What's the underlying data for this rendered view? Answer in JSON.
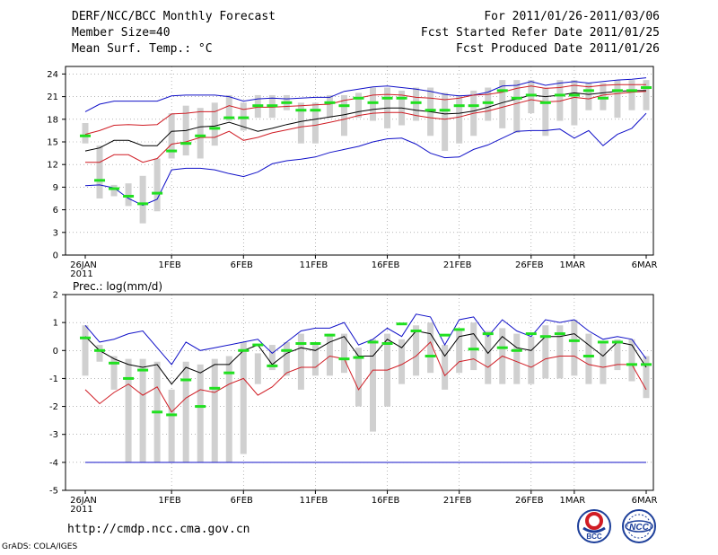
{
  "header": {
    "line1_left": "DERF/NCC/BCC Monthly Forecast",
    "line2_left": "Member Size=40",
    "line3_left": "Mean Surf. Temp.: °C",
    "line1_right": "For 2011/01/26-2011/03/06",
    "line2_right": "Fcst Started Refer Date 2011/01/25",
    "line3_right": "Fcst Produced Date 2011/01/26"
  },
  "footer": {
    "url": "http://cmdp.ncc.cma.gov.cn",
    "credit": "GrADS: COLA/IGES",
    "logo_left_text": "BCC",
    "logo_right_text": "NCC"
  },
  "colors": {
    "median": "#000000",
    "red": "#d01c24",
    "blue": "#1010c8",
    "bar": "#d0d0d0",
    "mark": "#20e020"
  },
  "chart_data": [
    {
      "type": "line",
      "title": "Mean Surf. Temp.: °C",
      "ylabel": "",
      "ylim": [
        0,
        25
      ],
      "yticks": [
        0,
        3,
        6,
        9,
        12,
        15,
        18,
        21,
        24
      ],
      "xlim": [
        0,
        39
      ],
      "xticks": [
        {
          "x": 0,
          "label": "26JAN",
          "sub": "2011"
        },
        {
          "x": 6,
          "label": "1FEB"
        },
        {
          "x": 11,
          "label": "6FEB"
        },
        {
          "x": 16,
          "label": "11FEB"
        },
        {
          "x": 21,
          "label": "16FEB"
        },
        {
          "x": 26,
          "label": "21FEB"
        },
        {
          "x": 31,
          "label": "26FEB"
        },
        {
          "x": 34,
          "label": "1MAR"
        },
        {
          "x": 39,
          "label": "6MAR"
        }
      ],
      "series": [
        {
          "name": "ensemble max",
          "color": "blue",
          "values": [
            19,
            20,
            20.4,
            20.4,
            20.4,
            20.4,
            21.1,
            21.2,
            21.2,
            21.2,
            21,
            20.4,
            20.7,
            20.8,
            20.7,
            20.8,
            20.9,
            20.9,
            21.7,
            22,
            22.3,
            22.4,
            22.2,
            22,
            21.7,
            21.3,
            21.1,
            21.2,
            21.6,
            22.4,
            22.5,
            23,
            22.5,
            22.8,
            23,
            22.8,
            23,
            23.2,
            23.3,
            23.5
          ]
        },
        {
          "name": "upper percentile",
          "color": "red",
          "values": [
            16,
            16.5,
            17.2,
            17.3,
            17.2,
            17.3,
            18.7,
            18.8,
            19,
            19,
            19.8,
            19.3,
            19.6,
            19.6,
            19.7,
            19.8,
            19.9,
            20,
            20.5,
            20.8,
            21.2,
            21.3,
            21.2,
            20.9,
            20.8,
            20.6,
            20.8,
            21.2,
            21.3,
            21.6,
            22.1,
            22.4,
            22.1,
            22.2,
            22.5,
            22.3,
            22.5,
            22.6,
            22.6,
            22.6
          ]
        },
        {
          "name": "median",
          "color": "median",
          "values": [
            13.8,
            14.2,
            15.2,
            15.2,
            14.5,
            14.5,
            16.4,
            16.5,
            17,
            17.1,
            17.6,
            17,
            16.4,
            16.8,
            17.3,
            17.7,
            18,
            18.3,
            18.6,
            19,
            19.3,
            19.5,
            19.5,
            19.2,
            19,
            18.7,
            18.8,
            19.1,
            19.6,
            20.2,
            20.7,
            21.2,
            21,
            21.2,
            21.5,
            21.3,
            21.5,
            21.7,
            21.8,
            21.8
          ]
        },
        {
          "name": "lower percentile",
          "color": "red",
          "values": [
            12.3,
            12.3,
            13.3,
            13.3,
            12.3,
            12.8,
            14.7,
            15,
            15.6,
            15.6,
            16.4,
            15.2,
            15.6,
            16.2,
            16.6,
            17,
            17.2,
            17.6,
            18,
            18.5,
            18.8,
            18.9,
            18.9,
            18.5,
            18.2,
            18,
            18.3,
            18.8,
            19.1,
            19.6,
            20.1,
            20.6,
            20.3,
            20.4,
            20.9,
            20.7,
            21.2,
            21.4,
            21.6,
            21.7
          ]
        },
        {
          "name": "ensemble min",
          "color": "blue",
          "values": [
            9.2,
            9.3,
            8.9,
            7.5,
            6.6,
            7.4,
            11.3,
            11.5,
            11.5,
            11.3,
            10.8,
            10.4,
            11,
            12.1,
            12.5,
            12.7,
            13,
            13.6,
            14,
            14.4,
            15,
            15.4,
            15.5,
            14.7,
            13.5,
            12.9,
            13,
            14,
            14.6,
            15.5,
            16.4,
            16.5,
            16.5,
            16.7,
            15.5,
            16.5,
            14.5,
            16,
            16.8,
            18.8
          ]
        }
      ],
      "bars": [
        [
          14.8,
          17.5
        ],
        [
          7.5,
          14.5
        ],
        [
          7.8,
          9.3
        ],
        [
          6.5,
          9.5
        ],
        [
          4.2,
          10.5
        ],
        [
          5.8,
          12.8
        ],
        [
          12.8,
          18.8
        ],
        [
          13.2,
          19.8
        ],
        [
          12.8,
          19.5
        ],
        [
          14.5,
          20.2
        ],
        [
          17.8,
          21.2
        ],
        [
          16.5,
          20.2
        ],
        [
          18.2,
          21.2
        ],
        [
          18.2,
          21.2
        ],
        [
          19.2,
          21.2
        ],
        [
          14.8,
          20.2
        ],
        [
          14.8,
          20.2
        ],
        [
          18.2,
          21.2
        ],
        [
          15.8,
          21.2
        ],
        [
          18.2,
          21.5
        ],
        [
          17.8,
          22.2
        ],
        [
          16.8,
          22.2
        ],
        [
          17.2,
          21.8
        ],
        [
          17.8,
          22.2
        ],
        [
          15.8,
          22.2
        ],
        [
          13.8,
          21.5
        ],
        [
          14.8,
          21.2
        ],
        [
          15.8,
          21.8
        ],
        [
          17.8,
          22.2
        ],
        [
          16.8,
          23.2
        ],
        [
          16.2,
          23.2
        ],
        [
          18.8,
          23.2
        ],
        [
          15.8,
          22.2
        ],
        [
          17.8,
          23.2
        ],
        [
          17.2,
          23.2
        ],
        [
          19.2,
          22.8
        ],
        [
          19.2,
          22.8
        ],
        [
          18.2,
          23.2
        ],
        [
          19.2,
          23.2
        ],
        [
          19.2,
          23.2
        ]
      ],
      "marks": [
        15.8,
        9.9,
        8.8,
        7.8,
        6.8,
        8.2,
        13.8,
        14.8,
        15.8,
        16.8,
        18.2,
        18.2,
        19.8,
        19.8,
        20.2,
        19.2,
        19.2,
        20.2,
        19.8,
        20.8,
        20.2,
        20.8,
        20.8,
        20.2,
        19.2,
        19.2,
        19.8,
        19.8,
        20.2,
        21.8,
        20.8,
        21.2,
        20.2,
        21.2,
        21.2,
        21.8,
        20.8,
        21.8,
        21.8,
        22.2
      ]
    },
    {
      "type": "line",
      "title": "Prec.: log(mm/d)",
      "ylabel": "",
      "ylim": [
        -5,
        2
      ],
      "yticks": [
        -5,
        -4,
        -3,
        -2,
        -1,
        0,
        1,
        2
      ],
      "xlim": [
        0,
        39
      ],
      "xticks": [
        {
          "x": 0,
          "label": "26JAN",
          "sub": "2011"
        },
        {
          "x": 6,
          "label": "1FEB"
        },
        {
          "x": 11,
          "label": "6FEB"
        },
        {
          "x": 16,
          "label": "11FEB"
        },
        {
          "x": 21,
          "label": "16FEB"
        },
        {
          "x": 26,
          "label": "21FEB"
        },
        {
          "x": 31,
          "label": "26FEB"
        },
        {
          "x": 34,
          "label": "1MAR"
        },
        {
          "x": 39,
          "label": "6MAR"
        }
      ],
      "series": [
        {
          "name": "ensemble max",
          "color": "blue",
          "values": [
            0.9,
            0.3,
            0.4,
            0.6,
            0.7,
            0.1,
            -0.5,
            0.3,
            0,
            0.1,
            0.2,
            0.3,
            0.4,
            -0.1,
            0.3,
            0.7,
            0.8,
            0.8,
            1,
            0.2,
            0.4,
            0.8,
            0.5,
            1.3,
            1.2,
            0.2,
            1.1,
            1.2,
            0.5,
            1.1,
            0.7,
            0.5,
            1.1,
            1,
            1.1,
            0.7,
            0.4,
            0.5,
            0.4,
            -0.3
          ]
        },
        {
          "name": "median",
          "color": "median",
          "values": [
            0.5,
            0,
            -0.3,
            -0.5,
            -0.6,
            -0.5,
            -1.2,
            -0.6,
            -0.8,
            -0.5,
            -0.5,
            0,
            0.2,
            -0.5,
            -0.1,
            0.1,
            0,
            0.3,
            0.5,
            -0.2,
            -0.2,
            0.4,
            0.1,
            0.7,
            0.6,
            -0.2,
            0.5,
            0.6,
            -0.1,
            0.5,
            0.1,
            0,
            0.5,
            0.5,
            0.6,
            0.2,
            -0.2,
            0.3,
            0.2,
            -0.6
          ]
        },
        {
          "name": "lower percentile",
          "color": "red",
          "values": [
            -1.4,
            -1.9,
            -1.5,
            -1.2,
            -1.6,
            -1.3,
            -2.2,
            -1.7,
            -1.4,
            -1.5,
            -1.2,
            -1,
            -1.6,
            -1.3,
            -0.8,
            -0.6,
            -0.6,
            -0.2,
            -0.3,
            -1.4,
            -0.7,
            -0.7,
            -0.5,
            -0.2,
            0.3,
            -0.9,
            -0.4,
            -0.3,
            -0.6,
            -0.2,
            -0.4,
            -0.6,
            -0.3,
            -0.2,
            -0.2,
            -0.5,
            -0.6,
            -0.5,
            -0.5,
            -1.4
          ]
        },
        {
          "name": "ensemble floor",
          "color": "blue",
          "values": [
            -4,
            -4,
            -4,
            -4,
            -4,
            -4,
            -4,
            -4,
            -4,
            -4,
            -4,
            -4,
            -4,
            -4,
            -4,
            -4,
            -4,
            -4,
            -4,
            -4,
            -4,
            -4,
            -4,
            -4,
            -4,
            -4,
            -4,
            -4,
            -4,
            -4,
            -4,
            -4,
            -4,
            -4,
            -4,
            -4,
            -4,
            -4,
            -4,
            -4
          ]
        }
      ],
      "bars": [
        [
          -0.9,
          0.9
        ],
        [
          -0.4,
          0.2
        ],
        [
          -1.4,
          -0.2
        ],
        [
          -4,
          -0.3
        ],
        [
          -4,
          -0.3
        ],
        [
          -4,
          -0.4
        ],
        [
          -4,
          -1.4
        ],
        [
          -4,
          -0.4
        ],
        [
          -4,
          -0.5
        ],
        [
          -4,
          -0.3
        ],
        [
          -4,
          -0.2
        ],
        [
          -3.7,
          0.3
        ],
        [
          -1.2,
          -0.1
        ],
        [
          -0.7,
          0.2
        ],
        [
          -0.9,
          0.3
        ],
        [
          -1.4,
          0.6
        ],
        [
          -0.9,
          0.3
        ],
        [
          -0.9,
          0.6
        ],
        [
          -0.8,
          0.6
        ],
        [
          -2,
          0.1
        ],
        [
          -2.9,
          0.4
        ],
        [
          -2,
          0.6
        ],
        [
          -1.2,
          0.4
        ],
        [
          -0.9,
          0.9
        ],
        [
          -0.8,
          1
        ],
        [
          -1.4,
          0.2
        ],
        [
          -0.8,
          0.7
        ],
        [
          -0.7,
          1
        ],
        [
          -1.2,
          0.7
        ],
        [
          -1.2,
          0.8
        ],
        [
          -1.2,
          0.6
        ],
        [
          -1.2,
          0.5
        ],
        [
          -1,
          0.9
        ],
        [
          -1,
          0.9
        ],
        [
          -0.9,
          1.1
        ],
        [
          -1.2,
          0.6
        ],
        [
          -1.2,
          0.3
        ],
        [
          -0.7,
          0.4
        ],
        [
          -1.1,
          0.4
        ],
        [
          -1.7,
          -0.2
        ]
      ],
      "marks": [
        0.45,
        0,
        -0.45,
        -1,
        -0.7,
        -2.2,
        -2.3,
        -1.05,
        -2,
        -1.35,
        -0.8,
        0,
        0.2,
        -0.55,
        0,
        0.25,
        0.25,
        0.55,
        -0.3,
        -0.25,
        0.3,
        0.25,
        0.95,
        0.7,
        -0.2,
        0.55,
        0.75,
        0.05,
        0.6,
        0.1,
        0,
        0.6,
        0.5,
        0.6,
        0.35,
        -0.2,
        0.3,
        0.3,
        -0.5,
        -0.5
      ]
    }
  ]
}
